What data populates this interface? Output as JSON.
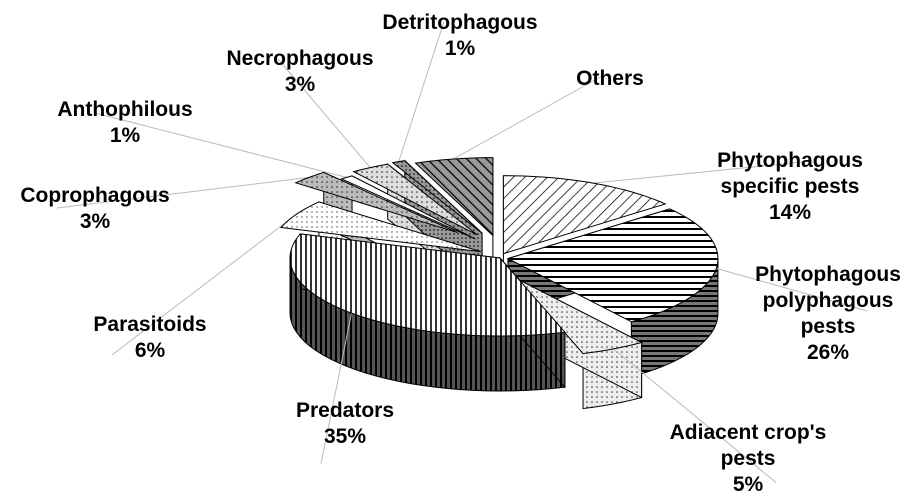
{
  "chart_data": {
    "type": "pie",
    "categories": [
      "Phytophagous specific pests",
      "Phytophagous polyphagous pests",
      "Adiacent crop's pests",
      "Predators",
      "Parasitoids",
      "Coprophagous",
      "Anthophilous",
      "Necrophagous",
      "Detritophagous",
      "Others"
    ],
    "values": [
      14,
      26,
      5,
      35,
      6,
      3,
      1,
      3,
      1,
      6
    ],
    "value_labels": [
      "14%",
      "26%",
      "5%",
      "35%",
      "6%",
      "3%",
      "1%",
      "3%",
      "1%",
      null
    ]
  }
}
